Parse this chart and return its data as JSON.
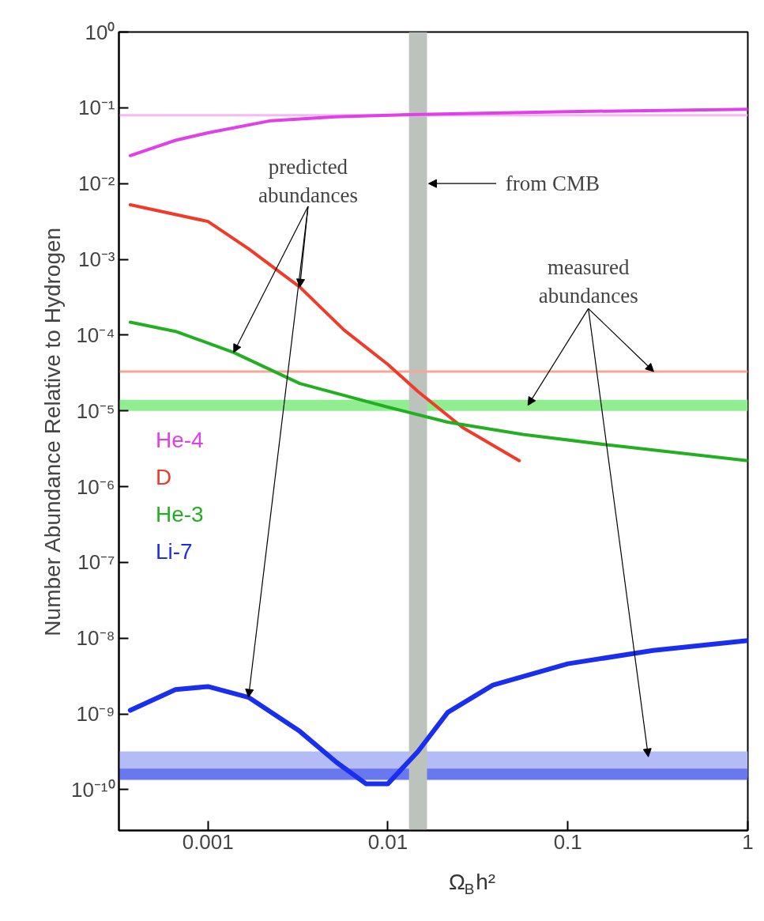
{
  "chart_data": {
    "type": "line",
    "xlabel": "Ω$_{B}$h²",
    "ylabel": "Number Abundance Relative to Hydrogen",
    "log": "xy",
    "grid": false,
    "legend": "left",
    "marker": "none",
    "line_style": "solid",
    "xlim": [
      0.00032,
      1
    ],
    "ylim": [
      2.9e-11,
      1
    ],
    "xticks": [
      0.001,
      0.01,
      0.1,
      1
    ],
    "yticks": [
      {
        "value": 1,
        "label": "10⁰"
      },
      {
        "value": 0.1,
        "label": "10⁻¹"
      },
      {
        "value": 0.01,
        "label": "10⁻²"
      },
      {
        "value": 0.001,
        "label": "10⁻³"
      },
      {
        "value": 0.0001,
        "label": "10⁻⁴"
      },
      {
        "value": 1e-05,
        "label": "10⁻⁵"
      },
      {
        "value": 1e-06,
        "label": "10⁻⁶"
      },
      {
        "value": 1e-07,
        "label": "10⁻⁷"
      },
      {
        "value": 1e-08,
        "label": "10⁻⁸"
      },
      {
        "value": 1e-09,
        "label": "10⁻⁹"
      },
      {
        "value": 1e-10,
        "label": "10⁻¹⁰"
      }
    ],
    "series": [
      {
        "name": "He-4",
        "color": "#e040e8",
        "x": [
          0.00037,
          0.00066,
          0.001,
          0.00224,
          0.0051,
          0.0132,
          0.1,
          1
        ],
        "values": [
          0.0234,
          0.0372,
          0.0468,
          0.0676,
          0.0759,
          0.0813,
          0.089,
          0.0955
        ]
      },
      {
        "name": "D",
        "color": "#f03a2a",
        "x": [
          0.00037,
          0.001,
          0.00168,
          0.00324,
          0.0057,
          0.01,
          0.0147,
          0.0261,
          0.0537
        ],
        "values": [
          0.00525,
          0.00316,
          0.00138,
          0.00043,
          0.000117,
          4.1e-05,
          1.8e-05,
          6e-06,
          2.2e-06
        ]
      },
      {
        "name": "He-3",
        "color": "#22b022",
        "x": [
          0.00037,
          0.00066,
          0.00139,
          0.00324,
          0.01,
          0.0215,
          0.0562,
          0.16,
          1
        ],
        "values": [
          0.000148,
          0.000112,
          5.9e-05,
          2.3e-05,
          1.12e-05,
          7.1e-06,
          4.9e-06,
          3.6e-06,
          2.2e-06
        ]
      },
      {
        "name": "Li-7",
        "color": "#1a2ef0",
        "x": [
          0.00037,
          0.00066,
          0.001,
          0.00168,
          0.00324,
          0.00518,
          0.00755,
          0.01,
          0.0147,
          0.0215,
          0.0383,
          0.1,
          0.298,
          1
        ],
        "values": [
          1.12e-09,
          2.1e-09,
          2.3e-09,
          1.66e-09,
          5.9e-10,
          2.3e-10,
          1.2e-10,
          1.2e-10,
          3.2e-10,
          1.05e-09,
          2.4e-09,
          4.6e-09,
          6.9e-09,
          9.3e-09
        ]
      }
    ],
    "ref_lines": [
      {
        "axis": "y",
        "value": 0.08,
        "color": "#f4b8f4"
      },
      {
        "axis": "y",
        "value": 3.3e-05,
        "color": "#f4a898"
      }
    ],
    "bands": [
      {
        "axis": "y",
        "from": 1e-05,
        "to": 1.4e-05,
        "color": "#90ee90"
      },
      {
        "axis": "y",
        "from": 1.45e-10,
        "to": 3.2e-10,
        "color": "#b4bcf8"
      },
      {
        "axis": "y",
        "from": 1.35e-10,
        "to": 1.9e-10,
        "color": "#6a78f0"
      },
      {
        "axis": "x",
        "from": 0.0131,
        "to": 0.0165,
        "color": "#bcc2bc"
      }
    ],
    "annotations": [
      {
        "text": "predicted\nabundances",
        "x": 0.00139,
        "y": 5.9e-05
      },
      {
        "text": "from CMB",
        "x": 0.0165,
        "y": 0.01
      },
      {
        "text": "measured\nabundances",
        "x": 0.3,
        "y": 3.3e-05
      }
    ]
  }
}
